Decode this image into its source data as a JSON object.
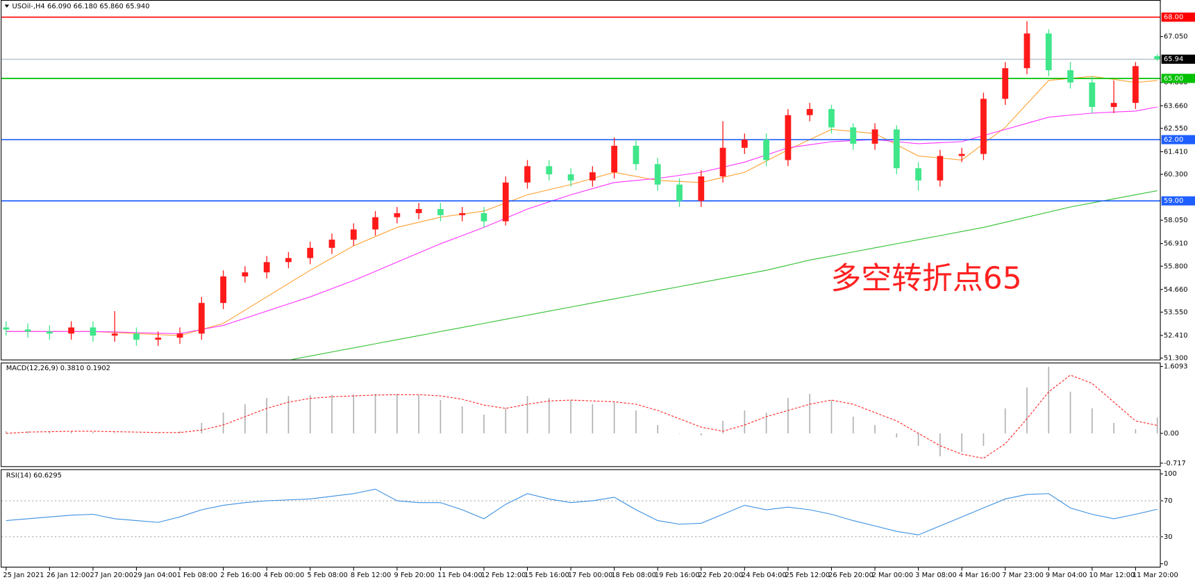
{
  "chart_data": [
    {
      "type": "candlestick",
      "title": "USOil-,H4",
      "ohlc_label": "66.090 66.180 65.860 65.940",
      "categories": [
        "25 Jan 2021",
        null,
        "26 Jan 12:00",
        null,
        "27 Jan 20:00",
        null,
        "29 Jan 04:00",
        null,
        "1 Feb 08:00",
        null,
        "2 Feb 16:00",
        null,
        "4 Feb 00:00",
        null,
        "5 Feb 08:00",
        null,
        "8 Feb 12:00",
        null,
        "9 Feb 20:00",
        null,
        "11 Feb 04:00",
        null,
        "12 Feb 12:00",
        null,
        "15 Feb 16:00",
        null,
        "17 Feb 00:00",
        null,
        "18 Feb 08:00",
        null,
        "19 Feb 16:00",
        null,
        "22 Feb 20:00",
        null,
        "24 Feb 04:00",
        null,
        "25 Feb 12:00",
        null,
        "26 Feb 20:00",
        null,
        "2 Mar 00:00",
        null,
        "3 Mar 08:00",
        null,
        "4 Mar 16:00",
        null,
        "7 Mar 23:00",
        null,
        "9 Mar 04:00",
        null,
        "10 Mar 12:00",
        null,
        "11 Mar 20:00",
        null
      ],
      "open": [
        52.8,
        52.7,
        52.6,
        52.5,
        52.8,
        52.4,
        52.5,
        52.2,
        52.3,
        52.5,
        54.0,
        55.3,
        55.5,
        56.0,
        56.2,
        56.7,
        57.1,
        57.6,
        58.2,
        58.4,
        58.6,
        58.3,
        58.4,
        58.0,
        59.9,
        60.7,
        60.3,
        60.0,
        60.4,
        61.7,
        60.8,
        59.8,
        59.0,
        60.2,
        61.6,
        62.0,
        61.0,
        63.2,
        63.5,
        62.6,
        61.8,
        62.5,
        60.6,
        60.0,
        61.2,
        61.3,
        64.0,
        65.5,
        67.2,
        65.4,
        64.8,
        63.6,
        63.8,
        66.09
      ],
      "high": [
        53.1,
        53.0,
        52.9,
        53.1,
        53.1,
        53.6,
        52.8,
        52.6,
        52.8,
        54.3,
        55.6,
        55.8,
        56.3,
        56.5,
        57.0,
        57.4,
        57.9,
        58.5,
        58.7,
        58.9,
        58.9,
        58.7,
        58.7,
        60.2,
        61.0,
        61.0,
        60.6,
        60.7,
        62.1,
        62.0,
        61.1,
        60.1,
        60.5,
        62.9,
        62.3,
        62.3,
        63.5,
        63.8,
        63.7,
        62.8,
        62.8,
        62.7,
        60.9,
        61.5,
        61.6,
        64.3,
        65.8,
        67.8,
        67.4,
        65.8,
        65.1,
        64.9,
        65.8,
        66.18
      ],
      "low": [
        52.4,
        52.3,
        52.2,
        52.2,
        52.1,
        52.1,
        51.9,
        51.9,
        52.0,
        52.2,
        53.7,
        55.0,
        55.2,
        55.7,
        55.9,
        56.4,
        56.8,
        57.3,
        57.9,
        58.1,
        58.0,
        58.0,
        57.7,
        57.8,
        59.6,
        60.0,
        59.7,
        59.7,
        60.1,
        60.5,
        59.5,
        58.7,
        58.7,
        59.9,
        61.3,
        60.7,
        60.7,
        62.9,
        62.3,
        61.5,
        61.5,
        60.3,
        59.5,
        59.7,
        60.9,
        61.0,
        63.7,
        65.2,
        65.1,
        64.5,
        63.3,
        63.3,
        63.5,
        65.86
      ],
      "close": [
        52.7,
        52.6,
        52.5,
        52.8,
        52.4,
        52.5,
        52.2,
        52.3,
        52.5,
        54.0,
        55.3,
        55.5,
        56.0,
        56.2,
        56.7,
        57.1,
        57.6,
        58.2,
        58.4,
        58.6,
        58.3,
        58.4,
        58.0,
        59.9,
        60.7,
        60.3,
        60.0,
        60.4,
        61.7,
        60.8,
        59.8,
        59.0,
        60.2,
        61.6,
        62.0,
        61.0,
        63.2,
        63.5,
        62.6,
        61.8,
        62.5,
        60.6,
        60.0,
        61.2,
        61.3,
        64.0,
        65.5,
        67.2,
        65.4,
        64.8,
        63.6,
        63.8,
        65.6,
        65.94
      ],
      "up_color": "#ff1a1a",
      "down_color": "#3fe68a",
      "ylim": [
        51.19,
        68.84
      ],
      "yticks": [
        {
          "value": 51.3,
          "label": "51.300"
        },
        {
          "value": 52.41,
          "label": "52.410"
        },
        {
          "value": 53.55,
          "label": "53.550"
        },
        {
          "value": 54.66,
          "label": "54.660"
        },
        {
          "value": 55.8,
          "label": "55.800"
        },
        {
          "value": 56.91,
          "label": "56.910"
        },
        {
          "value": 58.05,
          "label": "58.050"
        },
        {
          "value": 60.3,
          "label": "60.300"
        },
        {
          "value": 61.41,
          "label": "61.410"
        },
        {
          "value": 62.55,
          "label": "62.550"
        },
        {
          "value": 63.66,
          "label": "63.660"
        },
        {
          "value": 64.8,
          "label": "64.800"
        },
        {
          "value": 67.05,
          "label": "67.050"
        }
      ],
      "levels": [
        {
          "value": 68,
          "label": "68.00",
          "color": "#ff0000"
        },
        {
          "value": 65,
          "label": "65.00",
          "color": "#00c000"
        },
        {
          "value": 62,
          "label": "62.00",
          "color": "#1f5fff"
        },
        {
          "value": 59,
          "label": "59.00",
          "color": "#1f5fff"
        }
      ],
      "current": {
        "value": 65.94,
        "label": "65.94",
        "color": "#9aaab8"
      },
      "annotation": "多空转折点65",
      "annotation_color": "#ff2020",
      "overlays": [
        {
          "color": "#ffa030",
          "values": [
            52.6,
            52.6,
            52.6,
            52.6,
            52.6,
            52.55,
            52.5,
            52.45,
            52.4,
            52.7,
            53.0,
            53.65,
            54.3,
            54.95,
            55.6,
            56.2,
            56.8,
            57.25,
            57.7,
            57.95,
            58.2,
            58.35,
            58.5,
            58.9,
            59.3,
            59.55,
            59.8,
            60.1,
            60.4,
            60.2,
            60.0,
            59.95,
            59.9,
            60.15,
            60.4,
            60.95,
            61.5,
            62.0,
            62.5,
            62.4,
            62.3,
            61.75,
            61.2,
            61.1,
            61.0,
            61.8,
            62.6,
            63.75,
            64.9,
            65.0,
            65.1,
            64.95,
            64.8,
            64.9
          ]
        },
        {
          "color": "#ff30ff",
          "values": [
            52.6,
            52.6,
            52.6,
            52.6,
            52.6,
            52.58,
            52.55,
            52.52,
            52.5,
            52.7,
            52.9,
            53.25,
            53.6,
            53.95,
            54.3,
            54.7,
            55.1,
            55.55,
            56.0,
            56.45,
            56.9,
            57.3,
            57.7,
            58.15,
            58.6,
            58.95,
            59.3,
            59.6,
            59.9,
            60.0,
            60.1,
            60.25,
            60.4,
            60.65,
            60.9,
            61.25,
            61.6,
            61.75,
            61.9,
            61.95,
            62.0,
            61.9,
            61.8,
            61.85,
            61.9,
            62.2,
            62.5,
            62.8,
            63.1,
            63.2,
            63.3,
            63.35,
            63.4,
            63.6
          ]
        },
        {
          "color": "#30c030",
          "values": [
            null,
            null,
            null,
            null,
            null,
            null,
            null,
            null,
            null,
            null,
            null,
            null,
            null,
            51.2,
            51.4,
            51.6,
            51.8,
            52.0,
            52.2,
            52.4,
            52.6,
            52.8,
            53.0,
            53.2,
            53.4,
            53.6,
            53.8,
            54.0,
            54.2,
            54.4,
            54.6,
            54.8,
            55.0,
            55.2,
            55.4,
            55.6,
            55.85,
            56.1,
            56.3,
            56.5,
            56.7,
            56.9,
            57.1,
            57.3,
            57.5,
            57.7,
            57.95,
            58.2,
            58.45,
            58.7,
            58.9,
            59.1,
            59.3,
            59.5
          ]
        }
      ]
    },
    {
      "type": "macd",
      "label": "MACD(12,26,9) 0.3810 0.1902",
      "ylim": [
        -0.717,
        1.6093
      ],
      "yticks": [
        {
          "value": -0.717,
          "label": "-0.717"
        },
        {
          "value": 0,
          "label": "0.00"
        },
        1.6093
      ],
      "histogram_color": "#b0b0b0",
      "signal_color": "#ff2020",
      "histogram": [
        0.05,
        0.05,
        0.05,
        0.05,
        0.03,
        0.02,
        0.0,
        0.02,
        0.05,
        0.25,
        0.5,
        0.7,
        0.85,
        0.9,
        0.92,
        0.93,
        0.94,
        0.95,
        0.95,
        0.92,
        0.8,
        0.65,
        0.45,
        0.6,
        0.9,
        0.85,
        0.8,
        0.7,
        0.75,
        0.55,
        0.2,
        0.0,
        -0.05,
        0.3,
        0.55,
        0.5,
        0.85,
        0.95,
        0.8,
        0.4,
        0.2,
        -0.1,
        -0.3,
        -0.55,
        -0.45,
        -0.3,
        0.6,
        1.1,
        1.6,
        1.0,
        0.6,
        0.25,
        0.1,
        0.381
      ],
      "signal": [
        0.0,
        0.03,
        0.04,
        0.05,
        0.05,
        0.04,
        0.03,
        0.02,
        0.02,
        0.08,
        0.2,
        0.4,
        0.6,
        0.75,
        0.84,
        0.88,
        0.9,
        0.92,
        0.93,
        0.93,
        0.9,
        0.82,
        0.68,
        0.6,
        0.7,
        0.78,
        0.8,
        0.78,
        0.76,
        0.7,
        0.55,
        0.35,
        0.15,
        0.05,
        0.2,
        0.4,
        0.55,
        0.7,
        0.8,
        0.7,
        0.5,
        0.3,
        0.0,
        -0.3,
        -0.5,
        -0.6,
        -0.25,
        0.35,
        1.0,
        1.4,
        1.2,
        0.75,
        0.3,
        0.19
      ]
    },
    {
      "type": "line",
      "label": "RSI(14) 60.6295",
      "color": "#3a8fe0",
      "grid": true,
      "ylim": [
        0,
        100
      ],
      "yticks": [
        0,
        30,
        70,
        100
      ],
      "values": [
        48,
        50,
        52,
        54,
        55,
        50,
        48,
        46,
        52,
        60,
        65,
        68,
        70,
        71,
        72,
        75,
        78,
        83,
        70,
        68,
        68,
        60,
        50,
        66,
        78,
        72,
        68,
        70,
        74,
        60,
        48,
        44,
        45,
        55,
        65,
        60,
        63,
        60,
        55,
        48,
        42,
        36,
        32,
        42,
        52,
        62,
        72,
        77,
        78,
        62,
        55,
        50,
        55,
        60.6295
      ]
    }
  ]
}
